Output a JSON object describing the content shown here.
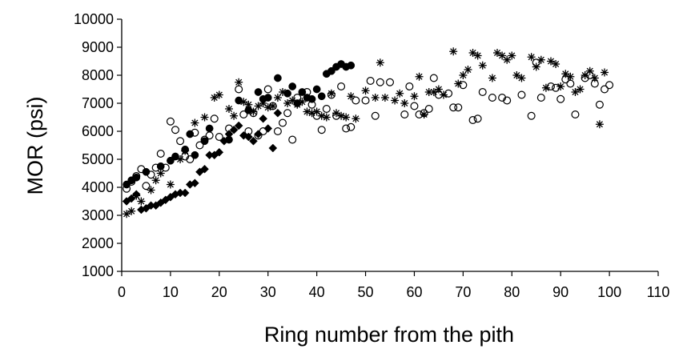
{
  "chart_data": {
    "type": "scatter",
    "xlabel": "Ring number from the pith",
    "ylabel": "MOR (psi)",
    "xlim": [
      0,
      110
    ],
    "ylim": [
      1000,
      10000
    ],
    "x_ticks": [
      0,
      10,
      20,
      30,
      40,
      50,
      60,
      70,
      80,
      90,
      100,
      110
    ],
    "y_ticks": [
      1000,
      2000,
      3000,
      4000,
      5000,
      6000,
      7000,
      8000,
      9000,
      10000
    ],
    "grid": false,
    "legend": "none",
    "series": [
      {
        "marker": "diamond-filled",
        "color": "#000000",
        "x": [
          1,
          2,
          3,
          4,
          5,
          6,
          7,
          8,
          9,
          10,
          11,
          12,
          13,
          14,
          15,
          16,
          17,
          18,
          19,
          20,
          21,
          22,
          23,
          24,
          25,
          26,
          27,
          28,
          29,
          30,
          31,
          32
        ],
        "y": [
          3500,
          3600,
          3750,
          3200,
          3250,
          3350,
          3350,
          3450,
          3550,
          3650,
          3750,
          3800,
          3800,
          4100,
          4150,
          4550,
          4650,
          5150,
          5150,
          5250,
          5650,
          5900,
          6050,
          6200,
          5850,
          5800,
          5650,
          5900,
          6450,
          6100,
          5400,
          6650
        ]
      },
      {
        "marker": "circle-filled",
        "color": "#000000",
        "x": [
          1,
          2,
          3,
          5,
          8,
          10,
          11,
          13,
          14,
          15,
          17,
          18,
          22,
          24,
          26,
          28,
          29,
          30,
          32,
          34,
          35,
          36,
          37,
          38,
          39,
          40,
          41,
          42,
          43,
          44,
          45,
          46,
          47
        ],
        "y": [
          4100,
          4250,
          4350,
          4550,
          4750,
          4950,
          5100,
          5350,
          5900,
          5150,
          5650,
          6100,
          5700,
          7100,
          6750,
          7400,
          7150,
          7200,
          7900,
          7350,
          7600,
          7000,
          7400,
          7200,
          7150,
          7500,
          7250,
          8050,
          8150,
          8300,
          8400,
          8300,
          8350
        ]
      },
      {
        "marker": "circle-open",
        "color": "#000000",
        "x": [
          1,
          2,
          3,
          4,
          5,
          6,
          7,
          8,
          9,
          10,
          11,
          12,
          13,
          14,
          15,
          16,
          17,
          18,
          19,
          20,
          22,
          24,
          25,
          26,
          27,
          28,
          29,
          30,
          31,
          32,
          33,
          34,
          35,
          36,
          38,
          39,
          40,
          41,
          42,
          43,
          44,
          45,
          46,
          47,
          48,
          50,
          51,
          52,
          53,
          55,
          58,
          59,
          60,
          61,
          62,
          63,
          64,
          65,
          67,
          68,
          69,
          70,
          72,
          73,
          74,
          76,
          78,
          79,
          82,
          84,
          85,
          86,
          88,
          89,
          90,
          91,
          92,
          93,
          95,
          96,
          97,
          98,
          99,
          100
        ],
        "y": [
          3950,
          4200,
          4400,
          4650,
          4050,
          4450,
          4700,
          5200,
          4700,
          6350,
          6050,
          5650,
          5100,
          5000,
          5950,
          5500,
          5700,
          5850,
          6450,
          5800,
          6100,
          7500,
          6600,
          6000,
          6650,
          5850,
          6000,
          7500,
          6900,
          6000,
          6300,
          6650,
          5700,
          7200,
          7400,
          6950,
          6550,
          6050,
          6800,
          7300,
          6550,
          7600,
          6100,
          6150,
          7100,
          7100,
          7800,
          6550,
          7750,
          7750,
          6600,
          7600,
          6900,
          6600,
          6650,
          6800,
          7900,
          7300,
          7350,
          6850,
          6850,
          7650,
          6400,
          6450,
          7400,
          7200,
          7200,
          7100,
          7300,
          6550,
          8450,
          7200,
          7600,
          7550,
          7150,
          7850,
          7700,
          6600,
          7900,
          8000,
          7700,
          6950,
          7500,
          7650
        ]
      },
      {
        "marker": "asterisk",
        "color": "#000000",
        "x": [
          1,
          2,
          3,
          4,
          6,
          7,
          8,
          10,
          12,
          13,
          15,
          17,
          19,
          20,
          22,
          23,
          24,
          25,
          26,
          27,
          28,
          29,
          30,
          31,
          32,
          33,
          34,
          35,
          36,
          37,
          38,
          39,
          40,
          41,
          42,
          43,
          44,
          45,
          46,
          47,
          48,
          50,
          52,
          53,
          54,
          56,
          57,
          58,
          60,
          61,
          62,
          63,
          64,
          65,
          66,
          68,
          69,
          70,
          71,
          72,
          73,
          74,
          76,
          77,
          78,
          79,
          80,
          81,
          82,
          84,
          85,
          86,
          87,
          88,
          89,
          90,
          91,
          92,
          93,
          94,
          95,
          96,
          97,
          98,
          99
        ],
        "y": [
          3050,
          3150,
          3700,
          3500,
          3900,
          4250,
          4500,
          4100,
          5000,
          5300,
          6300,
          6500,
          7200,
          7300,
          6800,
          6550,
          7750,
          7050,
          6950,
          6700,
          6900,
          7000,
          6850,
          6900,
          7200,
          7400,
          7000,
          7100,
          6950,
          7050,
          6700,
          6650,
          6700,
          6550,
          6500,
          7350,
          6650,
          6550,
          6500,
          7250,
          6450,
          7450,
          7200,
          8450,
          7200,
          7100,
          7350,
          7000,
          7250,
          7950,
          6600,
          7400,
          7400,
          7500,
          7300,
          8850,
          7700,
          8000,
          8200,
          8800,
          8700,
          8350,
          7900,
          8800,
          8700,
          8550,
          8700,
          8000,
          7900,
          8650,
          8300,
          8550,
          7550,
          8500,
          8400,
          7600,
          8050,
          7950,
          7400,
          7500,
          8000,
          8150,
          7900,
          6250,
          8100
        ]
      }
    ]
  }
}
